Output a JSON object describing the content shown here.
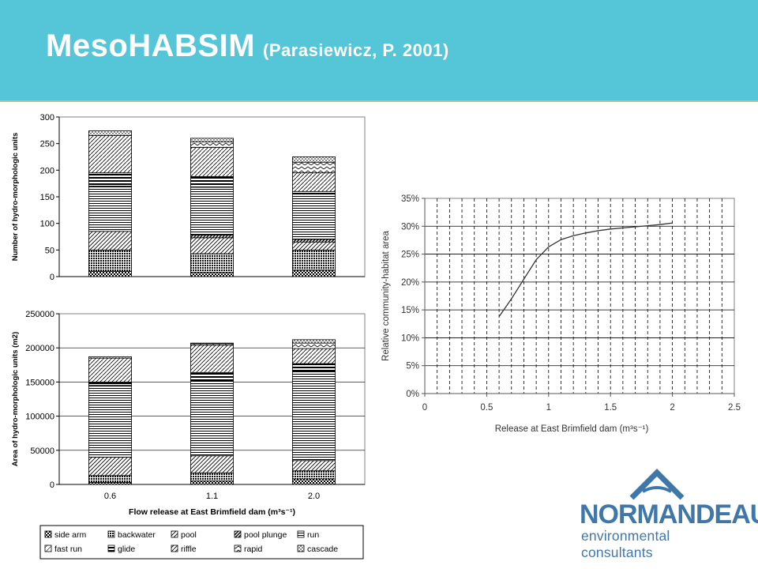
{
  "header": {
    "title": "MesoHABSIM",
    "subtitle": "(Parasiewicz, P.  2001)"
  },
  "logo": {
    "name": "NORMANDEAU",
    "tagline": "environmental consultants",
    "icon": "mountain-water-icon"
  },
  "colors": {
    "header_bg": "#55c5d8",
    "header_border": "#c9b896",
    "logo_blue": "#3f77a9"
  },
  "chart_data": [
    {
      "type": "bar",
      "stacked": true,
      "categories": [
        "0.6",
        "1.1",
        "2.0"
      ],
      "ylabel": "Number of hydro-morphologic units",
      "ylim": [
        0,
        300
      ],
      "yticks": [
        "0",
        "50",
        "100",
        "150",
        "200",
        "250",
        "300"
      ],
      "series": [
        {
          "name": "side arm",
          "values": [
            10,
            8,
            12
          ]
        },
        {
          "name": "backwater",
          "values": [
            40,
            35,
            38
          ]
        },
        {
          "name": "pool",
          "values": [
            35,
            30,
            15
          ]
        },
        {
          "name": "pool plunge",
          "values": [
            0,
            5,
            5
          ]
        },
        {
          "name": "run",
          "values": [
            85,
            90,
            85
          ]
        },
        {
          "name": "fast run",
          "values": [
            0,
            0,
            0
          ]
        },
        {
          "name": "glide",
          "values": [
            25,
            20,
            5
          ]
        },
        {
          "name": "riffle",
          "values": [
            70,
            55,
            35
          ]
        },
        {
          "name": "rapid",
          "values": [
            0,
            10,
            20
          ]
        },
        {
          "name": "cascade",
          "values": [
            9,
            7,
            10
          ]
        }
      ]
    },
    {
      "type": "bar",
      "stacked": true,
      "categories": [
        "0.6",
        "1.1",
        "2.0"
      ],
      "xlabel": "Flow release at East Brimfield dam (m³s⁻¹)",
      "ylabel": "Area of hydro-morphologic units (m2)",
      "ylim": [
        0,
        250000
      ],
      "yticks": [
        "0",
        "50000",
        "100000",
        "150000",
        "200000",
        "250000"
      ],
      "series": [
        {
          "name": "side arm",
          "values": [
            3000,
            5000,
            8000
          ]
        },
        {
          "name": "backwater",
          "values": [
            10000,
            12000,
            12000
          ]
        },
        {
          "name": "pool",
          "values": [
            27000,
            25000,
            15000
          ]
        },
        {
          "name": "pool plunge",
          "values": [
            0,
            0,
            0
          ]
        },
        {
          "name": "run",
          "values": [
            105000,
            110000,
            130000
          ]
        },
        {
          "name": "fast run",
          "values": [
            0,
            0,
            0
          ]
        },
        {
          "name": "glide",
          "values": [
            5000,
            12000,
            12000
          ]
        },
        {
          "name": "riffle",
          "values": [
            35000,
            40000,
            22000
          ]
        },
        {
          "name": "rapid",
          "values": [
            0,
            2000,
            8000
          ]
        },
        {
          "name": "cascade",
          "values": [
            2000,
            1000,
            5000
          ]
        }
      ]
    },
    {
      "type": "line",
      "xlabel": "Release at East Brimfield dam (m³s⁻¹)",
      "ylabel": "Relative community-habitat area",
      "xlim": [
        0,
        2.5
      ],
      "ylim": [
        0,
        35
      ],
      "xticks": [
        "0",
        "0.5",
        "1",
        "1.5",
        "2",
        "2.5"
      ],
      "yticks": [
        "0%",
        "5%",
        "10%",
        "15%",
        "20%",
        "25%",
        "30%",
        "35%"
      ],
      "grid": true,
      "series": [
        {
          "x": [
            0.6,
            0.7,
            0.8,
            0.9,
            1.0,
            1.1,
            1.2,
            1.3,
            1.4,
            1.5,
            1.6,
            1.7,
            1.8,
            1.9,
            2.0
          ],
          "y": [
            13.8,
            17,
            20.5,
            24,
            26.3,
            27.6,
            28.3,
            28.8,
            29.2,
            29.5,
            29.7,
            29.9,
            30.1,
            30.3,
            30.6
          ]
        }
      ]
    }
  ]
}
